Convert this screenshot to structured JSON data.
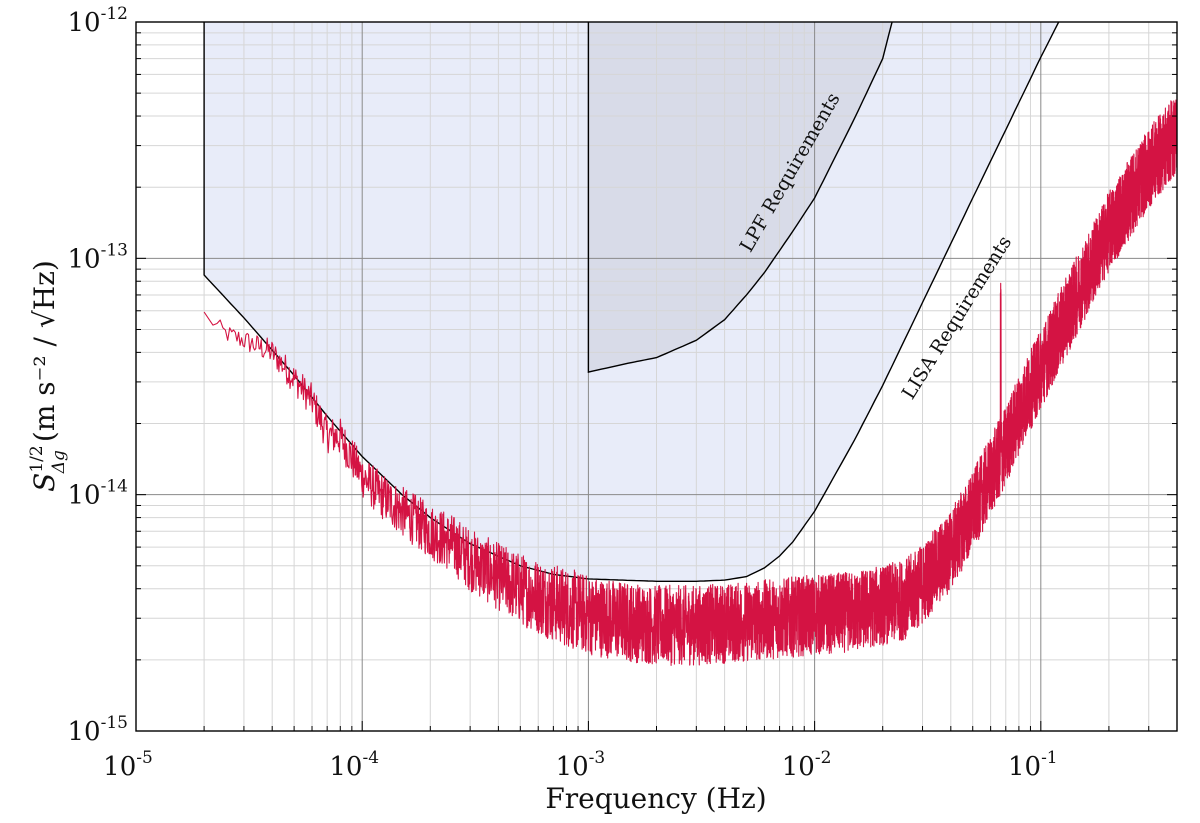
{
  "chart_data": {
    "type": "line",
    "xlabel": "Frequency (Hz)",
    "ylabel_symbol": "S",
    "ylabel_sup": "1/2",
    "ylabel_sub": "Δg",
    "ylabel_units": "m s⁻² / √Hz",
    "x_scale": "log",
    "y_scale": "log",
    "xlim": [
      1e-05,
      0.4
    ],
    "ylim": [
      1e-15,
      1e-12
    ],
    "grid": true,
    "x_ticks": [
      {
        "base": "10",
        "exp": "-5",
        "value": 1e-05
      },
      {
        "base": "10",
        "exp": "-4",
        "value": 0.0001
      },
      {
        "base": "10",
        "exp": "-3",
        "value": 0.001
      },
      {
        "base": "10",
        "exp": "-2",
        "value": 0.01
      },
      {
        "base": "10",
        "exp": "-1",
        "value": 0.1
      }
    ],
    "y_ticks": [
      {
        "base": "10",
        "exp": "-15",
        "value": 1e-15
      },
      {
        "base": "10",
        "exp": "-14",
        "value": 1e-14
      },
      {
        "base": "10",
        "exp": "-13",
        "value": 1e-13
      },
      {
        "base": "10",
        "exp": "-12",
        "value": 1e-12
      }
    ],
    "regions": [
      {
        "name": "LISA Requirements",
        "fill": "#e8ecf9",
        "start_x": 2e-05,
        "boundary": [
          [
            2e-05,
            8.5e-14
          ],
          [
            3e-05,
            5.6e-14
          ],
          [
            5e-05,
            3.2e-14
          ],
          [
            7e-05,
            2.15e-14
          ],
          [
            0.0001,
            1.45e-14
          ],
          [
            0.00015,
            1e-14
          ],
          [
            0.0002,
            8e-15
          ],
          [
            0.0003,
            6.2e-15
          ],
          [
            0.0005,
            5e-15
          ],
          [
            0.0007,
            4.6e-15
          ],
          [
            0.001,
            4.4e-15
          ],
          [
            0.002,
            4.3e-15
          ],
          [
            0.003,
            4.3e-15
          ],
          [
            0.004,
            4.35e-15
          ],
          [
            0.005,
            4.5e-15
          ],
          [
            0.006,
            4.9e-15
          ],
          [
            0.007,
            5.5e-15
          ],
          [
            0.008,
            6.3e-15
          ],
          [
            0.01,
            8.5e-15
          ],
          [
            0.015,
            1.7e-14
          ],
          [
            0.02,
            2.9e-14
          ],
          [
            0.03,
            6.5e-14
          ],
          [
            0.05,
            1.8e-13
          ],
          [
            0.07,
            3.5e-13
          ],
          [
            0.1,
            7.1e-13
          ],
          [
            0.12,
            1e-12
          ]
        ]
      },
      {
        "name": "LPF Requirements",
        "fill": "#d8dbe8",
        "start_x": 0.001,
        "boundary": [
          [
            0.001,
            3.3e-14
          ],
          [
            0.0015,
            3.6e-14
          ],
          [
            0.002,
            3.8e-14
          ],
          [
            0.003,
            4.5e-14
          ],
          [
            0.004,
            5.5e-14
          ],
          [
            0.005,
            7e-14
          ],
          [
            0.006,
            8.7e-14
          ],
          [
            0.008,
            1.3e-13
          ],
          [
            0.01,
            1.8e-13
          ],
          [
            0.015,
            3.9e-13
          ],
          [
            0.02,
            7e-13
          ],
          [
            0.022,
            1e-12
          ]
        ]
      }
    ],
    "series": [
      {
        "color": "#d41343",
        "anchors": [
          [
            2e-05,
            5.8e-14
          ],
          [
            2.5e-05,
            4.8e-14
          ],
          [
            3e-05,
            4.5e-14
          ],
          [
            4e-05,
            4e-14
          ],
          [
            5e-05,
            3.1e-14
          ],
          [
            6e-05,
            2.5e-14
          ],
          [
            7e-05,
            1.8e-14
          ],
          [
            8e-05,
            1.75e-14
          ],
          [
            0.0001,
            1.2e-14
          ],
          [
            0.00012,
            1e-14
          ],
          [
            0.00015,
            8.5e-15
          ],
          [
            0.0002,
            7e-15
          ],
          [
            0.00025,
            6.2e-15
          ],
          [
            0.0003,
            5.3e-15
          ],
          [
            0.0004,
            4.5e-15
          ],
          [
            0.0005,
            4e-15
          ],
          [
            0.0007,
            3.5e-15
          ],
          [
            0.001,
            3.1e-15
          ],
          [
            0.0015,
            2.9e-15
          ],
          [
            0.002,
            2.8e-15
          ],
          [
            0.003,
            2.8e-15
          ],
          [
            0.005,
            2.9e-15
          ],
          [
            0.007,
            3e-15
          ],
          [
            0.01,
            3.1e-15
          ],
          [
            0.015,
            3.2e-15
          ],
          [
            0.02,
            3.4e-15
          ],
          [
            0.025,
            3.6e-15
          ],
          [
            0.03,
            4.2e-15
          ],
          [
            0.04,
            5.8e-15
          ],
          [
            0.05,
            8.5e-15
          ],
          [
            0.06,
            1.2e-14
          ],
          [
            0.07,
            1.6e-14
          ],
          [
            0.08,
            2.2e-14
          ],
          [
            0.1,
            3.4e-14
          ],
          [
            0.15,
            7.5e-14
          ],
          [
            0.2,
            1.3e-13
          ],
          [
            0.3,
            2.4e-13
          ],
          [
            0.4,
            3.4e-13
          ]
        ],
        "spike": {
          "x": 0.0665,
          "y": 9.3e-14
        }
      }
    ]
  }
}
